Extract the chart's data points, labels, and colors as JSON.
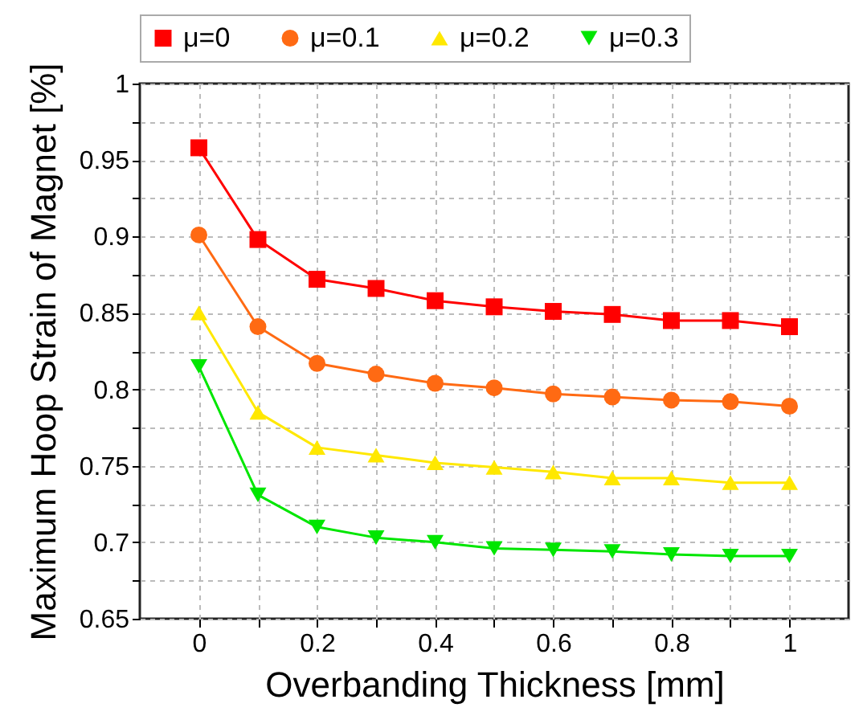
{
  "chart_data": {
    "type": "line",
    "xlabel": "Overbanding Thickness [mm]",
    "ylabel": "Maximum Hoop Strain of Magnet [%]",
    "x": [
      0,
      0.1,
      0.2,
      0.3,
      0.4,
      0.5,
      0.6,
      0.7,
      0.8,
      0.9,
      1
    ],
    "series": [
      {
        "name": "μ=0",
        "color": "#ff0000",
        "marker": "square",
        "values": [
          0.958,
          0.898,
          0.872,
          0.866,
          0.858,
          0.854,
          0.851,
          0.849,
          0.845,
          0.845,
          0.841
        ]
      },
      {
        "name": "μ=0.1",
        "color": "#ff6a13",
        "marker": "circle",
        "values": [
          0.901,
          0.841,
          0.817,
          0.81,
          0.804,
          0.801,
          0.797,
          0.795,
          0.793,
          0.792,
          0.789
        ]
      },
      {
        "name": "μ=0.2",
        "color": "#ffe800",
        "marker": "triangle",
        "values": [
          0.85,
          0.785,
          0.762,
          0.757,
          0.752,
          0.749,
          0.746,
          0.742,
          0.742,
          0.739,
          0.739
        ]
      },
      {
        "name": "μ=0.3",
        "color": "#00e600",
        "marker": "triangle-down",
        "values": [
          0.815,
          0.731,
          0.71,
          0.703,
          0.7,
          0.696,
          0.695,
          0.694,
          0.692,
          0.691,
          0.691
        ]
      }
    ],
    "xlim": [
      -0.1,
      1.1
    ],
    "xticks": [
      0,
      {
        "value": 0.1,
        "label": null
      },
      0.2,
      {
        "value": 0.3,
        "label": null
      },
      0.4,
      {
        "value": 0.5,
        "label": null
      },
      0.6,
      {
        "value": 0.7,
        "label": null
      },
      0.8,
      {
        "value": 0.9,
        "label": null
      },
      1
    ],
    "ylim": [
      0.65,
      1
    ],
    "yticks": [
      0.65,
      {
        "value": 0.675,
        "label": null
      },
      0.7,
      {
        "value": 0.725,
        "label": null
      },
      0.75,
      {
        "value": 0.775,
        "label": null
      },
      0.8,
      {
        "value": 0.825,
        "label": null
      },
      0.85,
      {
        "value": 0.875,
        "label": null
      },
      0.9,
      {
        "value": 0.925,
        "label": null
      },
      0.95,
      {
        "value": 0.975,
        "label": null
      },
      1
    ],
    "grid": true,
    "legend": "top",
    "line_style": "solid"
  }
}
